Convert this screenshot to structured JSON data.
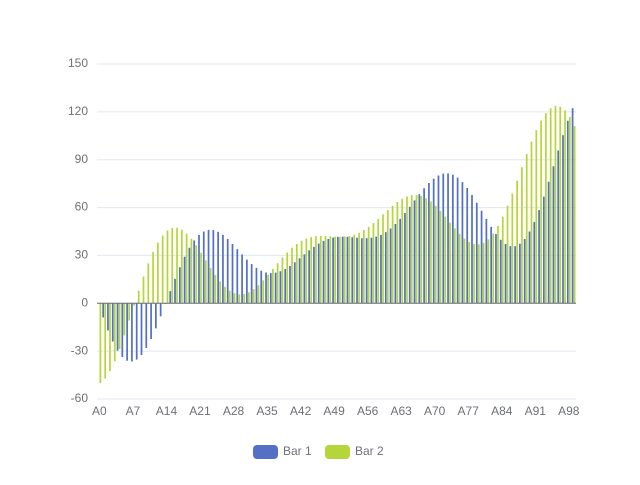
{
  "chart_data": {
    "type": "bar",
    "categories": [
      "A0",
      null,
      null,
      null,
      null,
      null,
      null,
      "A7",
      null,
      null,
      null,
      null,
      null,
      null,
      "A14",
      null,
      null,
      null,
      null,
      null,
      null,
      "A21",
      null,
      null,
      null,
      null,
      null,
      null,
      "A28",
      null,
      null,
      null,
      null,
      null,
      null,
      "A35",
      null,
      null,
      null,
      null,
      null,
      null,
      "A42",
      null,
      null,
      null,
      null,
      null,
      null,
      "A49",
      null,
      null,
      null,
      null,
      null,
      null,
      "A56",
      null,
      null,
      null,
      null,
      null,
      null,
      "A63",
      null,
      null,
      null,
      null,
      null,
      null,
      "A70",
      null,
      null,
      null,
      null,
      null,
      null,
      "A77",
      null,
      null,
      null,
      null,
      null,
      null,
      "A84",
      null,
      null,
      null,
      null,
      null,
      null,
      "A91",
      null,
      null,
      null,
      null,
      null,
      null,
      "A98",
      null
    ],
    "series": [
      {
        "name": "Bar 1",
        "color": "#5470c6",
        "values": [
          0,
          -8.9,
          -17.0,
          -24.0,
          -29.7,
          -33.7,
          -36.0,
          -36.5,
          -35.3,
          -32.4,
          -28.0,
          -22.4,
          -15.7,
          -8.2,
          -0.4,
          7.6,
          15.3,
          22.6,
          29.2,
          34.8,
          39.4,
          42.8,
          45.0,
          46.0,
          45.9,
          44.8,
          42.9,
          40.3,
          37.2,
          33.9,
          30.6,
          27.4,
          24.6,
          22.2,
          20.4,
          19.3,
          18.9,
          19.2,
          20.1,
          21.5,
          23.4,
          25.7,
          28.2,
          30.7,
          33.2,
          35.4,
          37.4,
          39.1,
          40.3,
          41.2,
          41.7,
          41.8,
          41.7,
          41.4,
          41.1,
          40.8,
          40.8,
          41.1,
          41.8,
          42.9,
          44.6,
          46.9,
          49.7,
          52.9,
          56.6,
          60.5,
          64.5,
          68.4,
          72.1,
          75.4,
          78.1,
          80.1,
          81.3,
          81.4,
          80.6,
          78.8,
          76.0,
          72.3,
          67.9,
          63.0,
          58.0,
          52.9,
          47.9,
          43.4,
          39.8,
          37.2,
          35.8,
          35.8,
          37.3,
          40.3,
          45.0,
          51.0,
          58.4,
          66.9,
          76.2,
          85.9,
          95.8,
          105.4,
          114.4,
          122.3
        ]
      },
      {
        "name": "Bar 2",
        "color": "#b5d63a",
        "values": [
          -50,
          -47.2,
          -42.5,
          -36.3,
          -28.7,
          -20.1,
          -10.9,
          -1.5,
          7.9,
          16.8,
          25.0,
          32.1,
          38.0,
          42.5,
          45.6,
          47.2,
          47.3,
          46.1,
          43.7,
          40.4,
          36.3,
          31.7,
          26.9,
          22.2,
          17.7,
          13.7,
          10.4,
          7.9,
          6.3,
          5.6,
          5.8,
          6.9,
          8.8,
          11.3,
          14.4,
          17.9,
          21.5,
          25.1,
          28.7,
          31.9,
          34.8,
          37.2,
          39.2,
          40.6,
          41.5,
          42.1,
          42.2,
          42.2,
          42.0,
          41.8,
          41.7,
          41.8,
          42.2,
          43.0,
          44.2,
          45.9,
          47.9,
          50.3,
          52.9,
          55.7,
          58.4,
          61.1,
          63.5,
          65.5,
          67.0,
          67.8,
          67.9,
          67.3,
          65.9,
          63.8,
          61.1,
          57.9,
          54.3,
          50.6,
          47.0,
          43.5,
          40.6,
          38.4,
          37.2,
          37.0,
          37.9,
          40.1,
          43.7,
          48.5,
          54.3,
          61.2,
          68.8,
          76.9,
          85.3,
          93.6,
          101.4,
          108.5,
          114.5,
          119.2,
          122.3,
          123.7,
          123.2,
          120.9,
          116.8,
          111.1
        ]
      }
    ],
    "ylim": [
      -60,
      150
    ],
    "yticks": [
      -60,
      -30,
      0,
      30,
      60,
      90,
      120,
      150
    ],
    "grid": true,
    "legend": "bottom"
  }
}
